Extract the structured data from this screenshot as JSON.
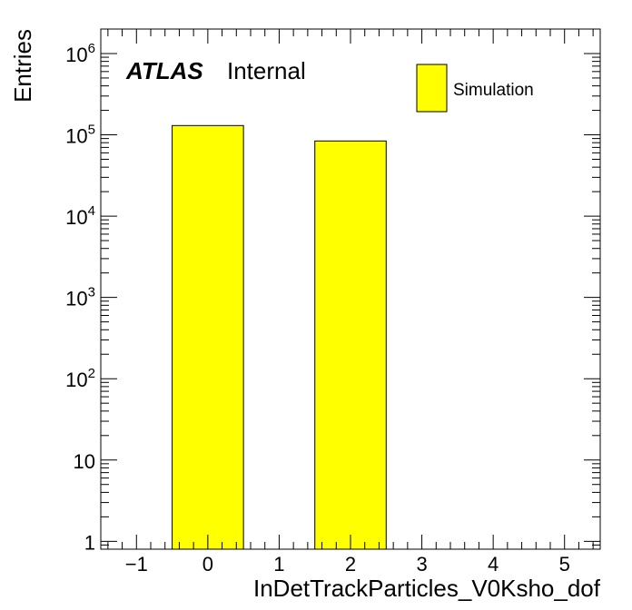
{
  "chart_data": {
    "type": "bar",
    "x": [
      0,
      2
    ],
    "values": [
      130000,
      84000
    ],
    "bin_width": 1,
    "xlim": [
      -1.5,
      5.5
    ],
    "ylim": [
      0.8,
      2000000
    ],
    "yscale": "log",
    "xlabel": "InDetTrackParticles_V0Ksho_dof",
    "ylabel": "Entries",
    "x_ticks": [
      "−1",
      "0",
      "1",
      "2",
      "3",
      "4",
      "5"
    ],
    "y_ticks": [
      {
        "value": 1,
        "base": "1",
        "exp": ""
      },
      {
        "value": 10,
        "base": "10",
        "exp": ""
      },
      {
        "value": 100,
        "base": "10",
        "exp": "2"
      },
      {
        "value": 1000,
        "base": "10",
        "exp": "3"
      },
      {
        "value": 10000,
        "base": "10",
        "exp": "4"
      },
      {
        "value": 100000,
        "base": "10",
        "exp": "5"
      },
      {
        "value": 1000000,
        "base": "10",
        "exp": "6"
      }
    ],
    "series": [
      {
        "name": "Simulation",
        "color": "#ffff00",
        "values": [
          130000,
          84000
        ]
      }
    ],
    "legend_position": "top-right",
    "grid": false,
    "label_main": "ATLAS",
    "label_sub": "Internal"
  }
}
